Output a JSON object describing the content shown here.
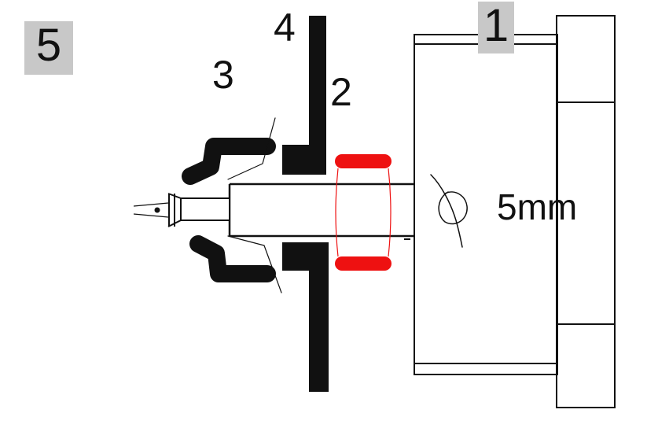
{
  "labels": {
    "part_5": "5",
    "part_1": "1",
    "part_4": "4",
    "part_3": "3",
    "part_2": "2",
    "dimension": "5mm"
  },
  "colors": {
    "ink": "#111111",
    "highlight": "#ee1111",
    "label_box": "#c8c8c8"
  }
}
